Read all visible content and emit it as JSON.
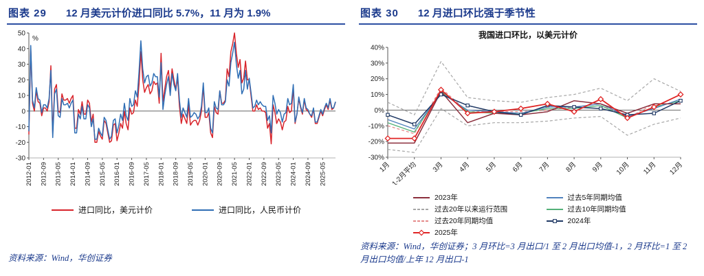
{
  "colors": {
    "accent_blue": "#1b3a8c",
    "underline_blue": "#2b4ea2"
  },
  "left_panel": {
    "header_label": "图表 29",
    "header_title": "12 月美元计价进口同比 5.7%，11 月为 1.9%",
    "source": "资料来源：Wind，华创证券",
    "legend": [
      {
        "label": "进口同比，美元计价",
        "color": "#d8232a"
      },
      {
        "label": "进口同比，人民币计价",
        "color": "#2e6db4"
      }
    ]
  },
  "right_panel": {
    "header_label": "图表 30",
    "header_title": "12 月进口环比强于季节性",
    "chart_title": "我国进口环比，以美元计价",
    "source": "资料来源：Wind，华创证券；3 月环比=3 月出口/1 至 2 月出口均值-1，2 月环比=1 至 2 月出口均值/上年 12 月出口-1",
    "legend": [
      {
        "label": "2023年",
        "color": "#8b2e3c"
      },
      {
        "label": "过去5年同期均值",
        "color": "#4f81bd"
      },
      {
        "label": "过去20年以来运行范围",
        "color": "#a6a6a6",
        "dash": true
      },
      {
        "label": "过去10年同期均值",
        "color": "#53b178"
      },
      {
        "label": "过去20年同期均值",
        "color": "#e58a8a",
        "dash": true
      },
      {
        "label": "2024年",
        "color": "#1f3864",
        "marker": "square"
      },
      {
        "label": "2025年",
        "color": "#e02424",
        "marker": "diamond"
      }
    ]
  },
  "chart_data": [
    {
      "type": "line",
      "title": "",
      "ylim": [
        -30,
        50
      ],
      "yticks": [
        -30,
        -20,
        -10,
        0,
        10,
        20,
        30,
        40,
        50
      ],
      "y_unit": "%",
      "x_tick_every": 8,
      "x_tick_labels": [
        "2012-01",
        "2012-09",
        "2013-05",
        "2014-01",
        "2014-09",
        "2015-05",
        "2016-01",
        "2016-09",
        "2017-05",
        "2018-01",
        "2018-09",
        "2019-05",
        "2020-01",
        "2020-09",
        "2021-05",
        "2022-01",
        "2022-09",
        "2023-05",
        "2024-01",
        "2024-09",
        "2025-05"
      ],
      "series": [
        {
          "name": "进口同比，美元计价",
          "color": "#d8232a",
          "width": 1.5,
          "values": [
            -15,
            40,
            5,
            0,
            13,
            6,
            5,
            -3,
            2,
            2,
            0,
            6,
            29,
            -14,
            14,
            17,
            0,
            -1,
            11,
            7,
            7,
            8,
            5,
            8,
            10,
            -11,
            -11,
            1,
            -2,
            6,
            -2,
            -2,
            7,
            5,
            -7,
            -2,
            -20,
            -20,
            -13,
            -16,
            -18,
            -6,
            -8,
            -14,
            -20,
            -19,
            -9,
            -8,
            -19,
            -14,
            -8,
            -11,
            0,
            -8,
            -12,
            2,
            -2,
            -1,
            7,
            3,
            17,
            38,
            20,
            12,
            15,
            17,
            11,
            13,
            19,
            17,
            18,
            5,
            37,
            6,
            14,
            22,
            26,
            14,
            27,
            20,
            14,
            21,
            3,
            -8,
            -2,
            -5,
            -8,
            4,
            -9,
            -7,
            -6,
            -6,
            -9,
            -6,
            0,
            16,
            -4,
            -4,
            -1,
            -14,
            -17,
            3,
            -1,
            -2,
            13,
            5,
            5,
            7,
            27,
            22,
            38,
            43,
            50,
            37,
            28,
            33,
            18,
            21,
            32,
            20,
            20,
            10,
            0,
            0,
            4,
            1,
            2,
            0,
            0,
            -1,
            -11,
            -8,
            -21,
            4,
            -1,
            -8,
            -5,
            -7,
            -12,
            -7,
            -6,
            3,
            -1,
            0,
            15,
            -8,
            -2,
            8,
            2,
            -2,
            7,
            1,
            0,
            -2,
            -4,
            1,
            -8,
            -8,
            -4,
            0,
            -3,
            1,
            4,
            1,
            7,
            1,
            1.9,
            5.7
          ]
        },
        {
          "name": "进口同比，人民币计价",
          "color": "#2e6db4",
          "width": 1.5,
          "values": [
            -13,
            42,
            7,
            2,
            15,
            8,
            7,
            -1,
            4,
            4,
            2,
            8,
            26,
            -17,
            11,
            14,
            -3,
            -4,
            8,
            4,
            4,
            5,
            2,
            5,
            7,
            -14,
            -14,
            -2,
            -5,
            3,
            -5,
            -5,
            4,
            2,
            -10,
            -5,
            -18,
            -18,
            -11,
            -14,
            -16,
            -4,
            -6,
            -12,
            -18,
            -16,
            -6,
            -5,
            -14,
            -9,
            -2,
            -6,
            5,
            -3,
            -6,
            8,
            3,
            4,
            13,
            9,
            25,
            45,
            27,
            18,
            22,
            23,
            16,
            18,
            24,
            22,
            22,
            9,
            31,
            1,
            10,
            17,
            22,
            10,
            24,
            17,
            13,
            24,
            7,
            -4,
            2,
            -1,
            -4,
            8,
            -4,
            -3,
            -1,
            -2,
            -5,
            -3,
            3,
            18,
            -1,
            -1,
            2,
            -11,
            -14,
            6,
            2,
            1,
            13,
            4,
            4,
            6,
            20,
            16,
            31,
            37,
            44,
            30,
            21,
            26,
            11,
            14,
            26,
            14,
            21,
            12,
            2,
            3,
            7,
            4,
            6,
            4,
            3,
            3,
            -6,
            -3,
            -14,
            10,
            5,
            -2,
            1,
            -1,
            -7,
            -2,
            -1,
            8,
            4,
            5,
            17,
            -7,
            -2,
            9,
            3,
            -1,
            8,
            2,
            1,
            -2,
            -3,
            2,
            -7,
            -7,
            -3,
            1,
            -2,
            2,
            5,
            2,
            8,
            2,
            2,
            6
          ]
        }
      ]
    },
    {
      "type": "line",
      "title": "我国进口环比，以美元计价",
      "ylim": [
        -30,
        40
      ],
      "yticks": [
        -30,
        -20,
        -10,
        0,
        10,
        20,
        30,
        40
      ],
      "categories": [
        "1月",
        "1-2月平均",
        "3月",
        "4月",
        "5月",
        "6月",
        "7月",
        "8月",
        "9月",
        "10月",
        "11月",
        "12月"
      ],
      "series": [
        {
          "name": "过去20年以来运行范围",
          "color": "#a6a6a6",
          "dash": true,
          "width": 1.2,
          "upper": [
            5,
            -3,
            31,
            8,
            6,
            5,
            8,
            10,
            14,
            6,
            20,
            12
          ],
          "lower": [
            -25,
            -27,
            1,
            -10,
            -8,
            -8,
            -7,
            -5,
            -4,
            -16,
            -9,
            -5
          ]
        },
        {
          "name": "过去20年同期均值",
          "color": "#e58a8a",
          "dash": true,
          "width": 1.3,
          "values": [
            -10,
            -15,
            14,
            -1,
            -1,
            -1,
            0,
            2,
            4,
            -5,
            4,
            4
          ]
        },
        {
          "name": "过去10年同期均值",
          "color": "#53b178",
          "width": 1.3,
          "values": [
            -8,
            -14,
            12,
            -1,
            -2,
            -2,
            1,
            1,
            3,
            -5,
            2,
            6
          ]
        },
        {
          "name": "过去5年同期均值",
          "color": "#4f81bd",
          "width": 1.3,
          "values": [
            -6,
            -12,
            11,
            0,
            -1,
            -2,
            2,
            2,
            4,
            -4,
            1,
            7
          ]
        },
        {
          "name": "2023年",
          "color": "#8b2e3c",
          "width": 1.5,
          "values": [
            -21,
            -21,
            12,
            -8,
            -2,
            -3,
            -1,
            6,
            4,
            -2,
            4,
            4
          ]
        },
        {
          "name": "2024年",
          "color": "#1f3864",
          "width": 1.5,
          "marker": "square",
          "values": [
            -3,
            -9,
            10,
            3,
            -1,
            -3,
            3,
            2,
            1,
            -3,
            -2,
            6
          ]
        },
        {
          "name": "2025年",
          "color": "#e02424",
          "width": 1.8,
          "marker": "diamond",
          "values": [
            -18,
            -18,
            13,
            -2,
            -1,
            1,
            4,
            -1,
            7,
            -5,
            2,
            10
          ]
        }
      ]
    }
  ]
}
